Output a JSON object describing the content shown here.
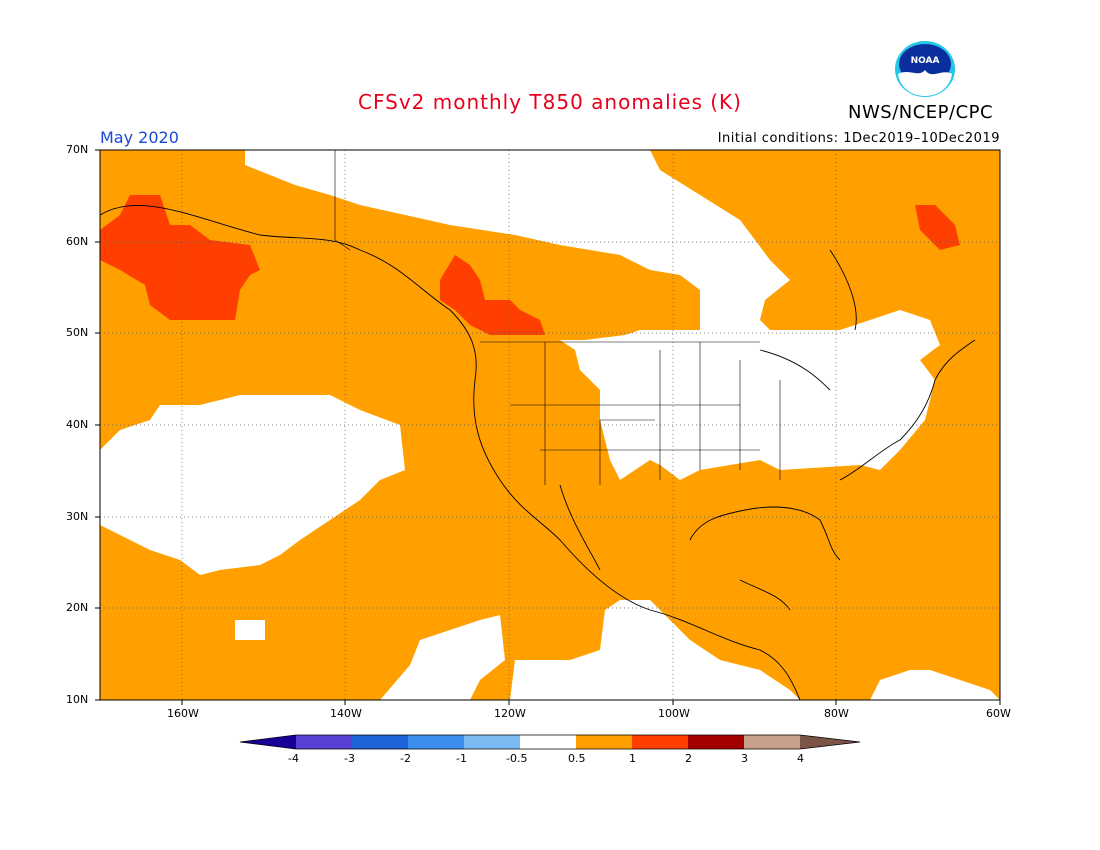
{
  "header": {
    "title": "CFSv2 monthly T850 anomalies (K)",
    "month": "May 2020",
    "initial_conditions": "Initial conditions: 1Dec2019–10Dec2019",
    "org": "NWS/NCEP/CPC",
    "logo_text": "NOAA"
  },
  "map": {
    "lat_labels": [
      "70N",
      "60N",
      "50N",
      "40N",
      "30N",
      "20N",
      "10N"
    ],
    "lon_labels": [
      "160W",
      "140W",
      "120W",
      "100W",
      "80W",
      "60W"
    ],
    "colors": {
      "neutral": "#ffffff",
      "warm1": "#ff9f00",
      "warm2": "#ff3f00"
    }
  },
  "colorbar": {
    "ticks": [
      "-4",
      "-3",
      "-2",
      "-1",
      "-0.5",
      "0.5",
      "1",
      "2",
      "3",
      "4"
    ],
    "colors": [
      "#1a0099",
      "#5a3fd6",
      "#1f63d8",
      "#3b8eed",
      "#79bbf2",
      "#ffffff",
      "#ff9f00",
      "#ff3f00",
      "#a50000",
      "#c9a08c",
      "#7c5447"
    ]
  }
}
